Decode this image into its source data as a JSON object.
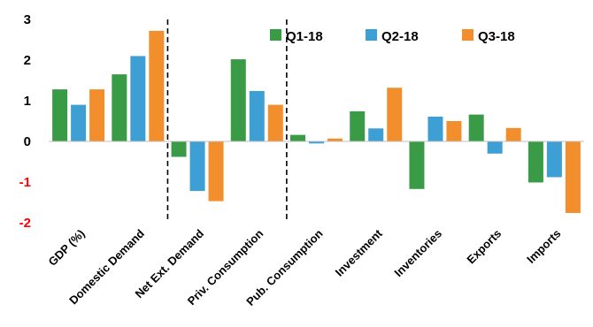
{
  "chart_data": {
    "type": "bar",
    "categories": [
      "GDP (%)",
      "Domestic Demand",
      "Net Ext. Demand",
      "Priv. Consumption",
      "Pub. Consumption",
      "Investment",
      "Inventories",
      "Exports",
      "Imports"
    ],
    "series": [
      {
        "name": "Q1-18",
        "color": "#3a9b47",
        "values": [
          1.28,
          1.65,
          -0.38,
          2.02,
          0.16,
          0.74,
          -1.17,
          0.66,
          -1.01
        ]
      },
      {
        "name": "Q2-18",
        "color": "#3d9fd3",
        "values": [
          0.9,
          2.1,
          -1.22,
          1.24,
          -0.05,
          0.32,
          0.61,
          -0.3,
          -0.88
        ]
      },
      {
        "name": "Q3-18",
        "color": "#f28e2b",
        "values": [
          1.28,
          2.72,
          -1.47,
          0.9,
          0.07,
          1.32,
          0.5,
          0.33,
          -1.76
        ]
      }
    ],
    "yticks": [
      "3",
      "2",
      "1",
      "0",
      "-1",
      "-2"
    ],
    "ytick_colors": [
      "#000000",
      "#000000",
      "#000000",
      "#000000",
      "#ff0000",
      "#ff0000"
    ],
    "ylim": [
      -2,
      3
    ],
    "separators_after": [
      1,
      3
    ],
    "legend_position": "top-right",
    "grid": false
  }
}
